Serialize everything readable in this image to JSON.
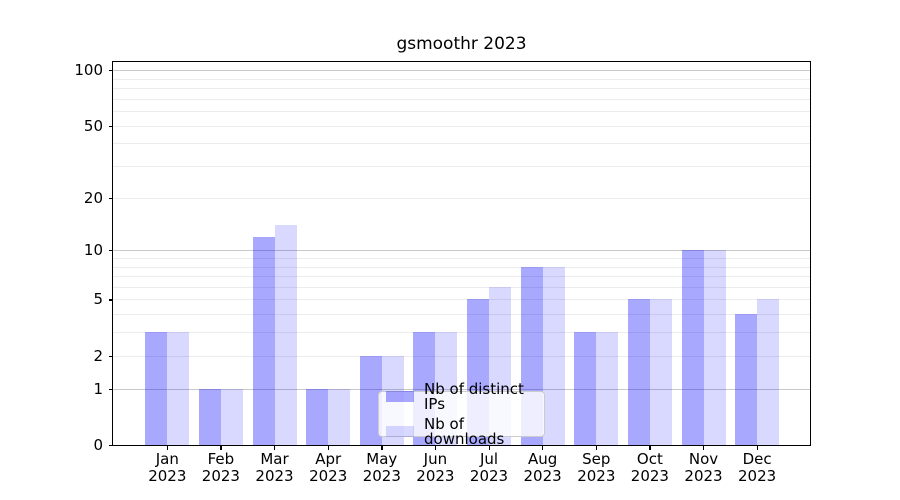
{
  "chart_data": {
    "type": "bar",
    "title": "gsmoothr 2023",
    "categories": [
      "Jan",
      "Feb",
      "Mar",
      "Apr",
      "May",
      "Jun",
      "Jul",
      "Aug",
      "Sep",
      "Oct",
      "Nov",
      "Dec"
    ],
    "year_suffix": "2023",
    "series": [
      {
        "name": "Nb of distinct IPs",
        "color": "#a8a8f6",
        "fill": "rgba(0,0,255,0.34)",
        "values": [
          3,
          1,
          12,
          1,
          2,
          3,
          5,
          8,
          3,
          5,
          10,
          4
        ]
      },
      {
        "name": "Nb of downloads",
        "color": "#dbdbfa",
        "fill": "rgba(0,0,255,0.15)",
        "values": [
          3,
          1,
          14,
          1,
          2,
          3,
          6,
          8,
          3,
          5,
          10,
          5
        ]
      }
    ],
    "yscale": "log1p",
    "ylim": [
      0,
      110
    ],
    "y_ticks": [
      0,
      1,
      2,
      5,
      10,
      20,
      50,
      100
    ],
    "grid": {
      "major": [
        1,
        10,
        100
      ],
      "minor": [
        2,
        3,
        4,
        5,
        6,
        7,
        8,
        9,
        20,
        30,
        40,
        50,
        60,
        70,
        80,
        90
      ],
      "major_color": "#c9c9c9",
      "minor_color": "#ececec"
    },
    "legend": {
      "position": "lower center"
    },
    "axis_color": "#000000",
    "background": "#ffffff"
  }
}
